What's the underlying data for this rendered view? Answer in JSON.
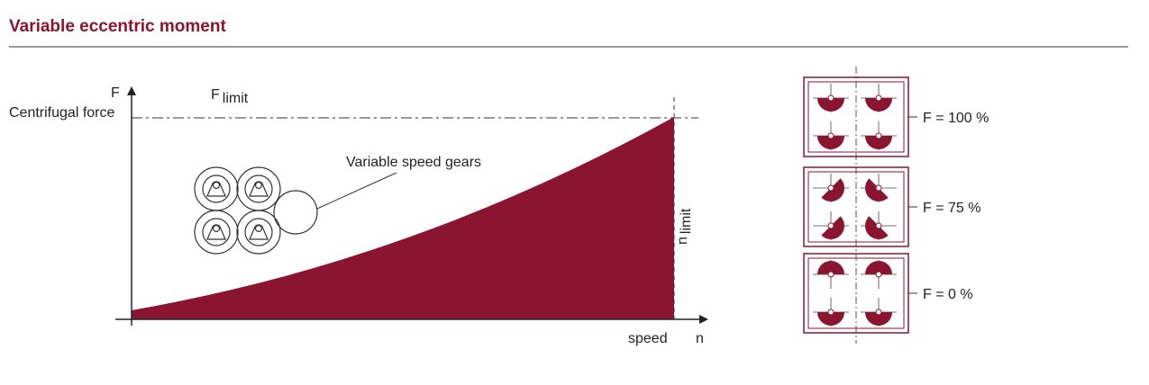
{
  "header": {
    "title": "Variable eccentric moment"
  },
  "diagram": {
    "y_axis": {
      "symbol": "F",
      "label": "Centrifugal force"
    },
    "f_limit": {
      "symbol": "F",
      "subscript": "limit"
    },
    "annotation": "Variable speed gears",
    "n_limit": {
      "symbol": "n",
      "subscript": "limit"
    },
    "x_axis": {
      "label": "speed",
      "symbol": "n"
    }
  },
  "positions": [
    {
      "label": "F = 100 %"
    },
    {
      "label": "F = 75 %"
    },
    {
      "label": "F = 0 %"
    }
  ]
}
